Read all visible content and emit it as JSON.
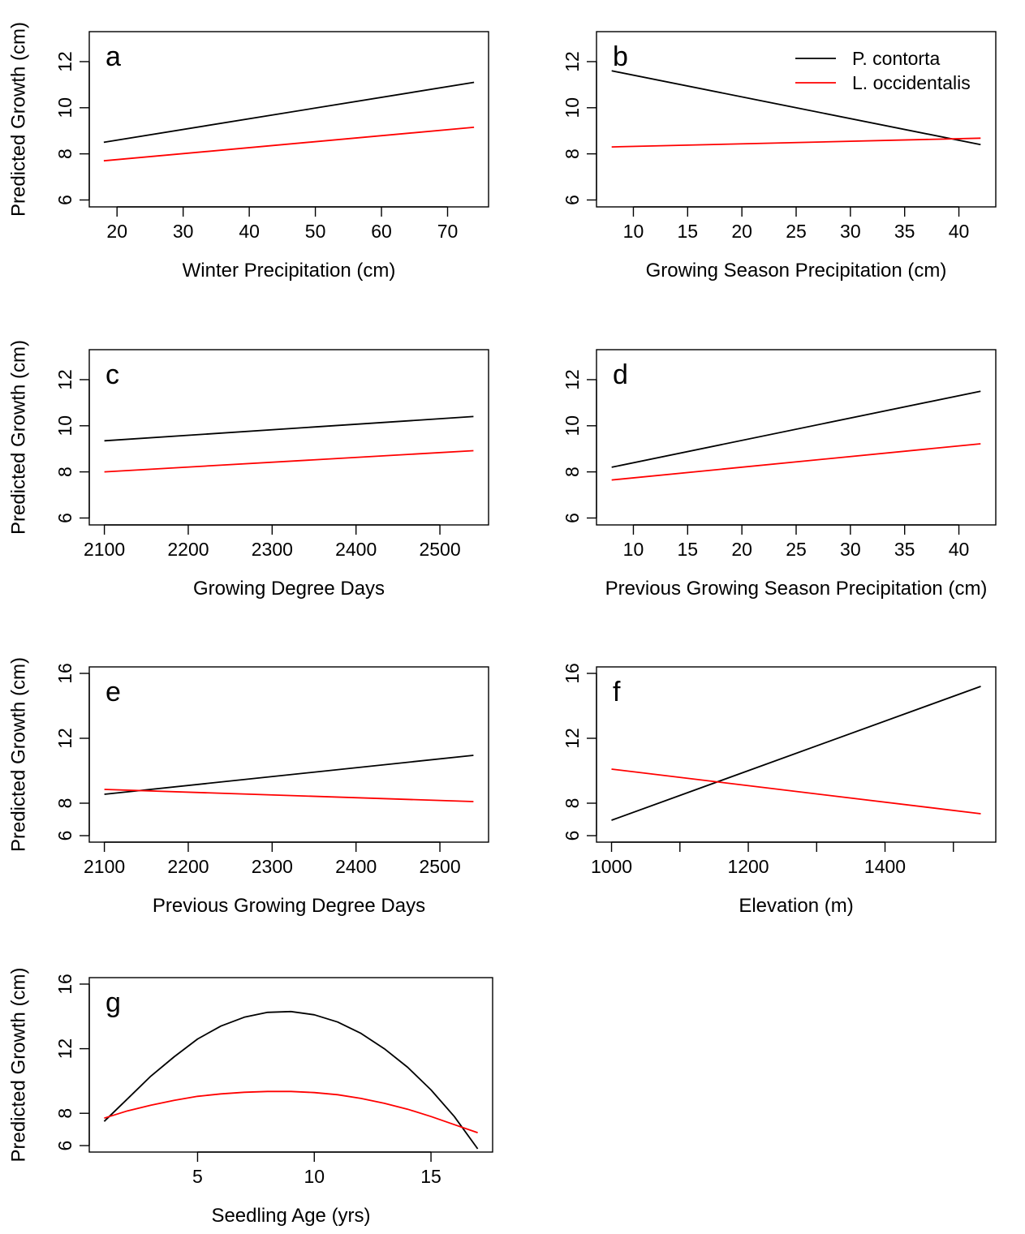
{
  "chart_data": [
    {
      "type": "line",
      "panel_label": "a",
      "xlabel": "Winter Precipitation (cm)",
      "ylabel": "Predicted Growth (cm)",
      "xlim": [
        15.8,
        76.2
      ],
      "ylim": [
        5.7,
        13.3
      ],
      "xticks": [
        20,
        30,
        40,
        50,
        60,
        70
      ],
      "yticks": [
        6,
        8,
        10,
        12
      ],
      "series": [
        {
          "name": "P. contorta",
          "color": "#000000",
          "x": [
            18,
            74
          ],
          "y": [
            8.5,
            11.1
          ]
        },
        {
          "name": "L. occidentalis",
          "color": "#ff0000",
          "x": [
            18,
            74
          ],
          "y": [
            7.7,
            9.15
          ]
        }
      ]
    },
    {
      "type": "line",
      "panel_label": "b",
      "xlabel": "Growing Season Precipitation (cm)",
      "ylabel": "",
      "xlim": [
        6.6,
        43.4
      ],
      "ylim": [
        5.7,
        13.3
      ],
      "xticks": [
        10,
        15,
        20,
        25,
        30,
        35,
        40
      ],
      "yticks": [
        6,
        8,
        10,
        12
      ],
      "legend": {
        "position": "top-right",
        "entries": [
          "P. contorta",
          "L. occidentalis"
        ]
      },
      "series": [
        {
          "name": "P. contorta",
          "color": "#000000",
          "x": [
            8,
            42
          ],
          "y": [
            11.6,
            8.4
          ]
        },
        {
          "name": "L. occidentalis",
          "color": "#ff0000",
          "x": [
            8,
            42
          ],
          "y": [
            8.3,
            8.68
          ]
        }
      ]
    },
    {
      "type": "line",
      "panel_label": "c",
      "xlabel": "Growing Degree Days",
      "ylabel": "Predicted Growth (cm)",
      "xlim": [
        2082,
        2558
      ],
      "ylim": [
        5.7,
        13.3
      ],
      "xticks": [
        2100,
        2200,
        2300,
        2400,
        2500
      ],
      "yticks": [
        6,
        8,
        10,
        12
      ],
      "series": [
        {
          "name": "P. contorta",
          "color": "#000000",
          "x": [
            2100,
            2540
          ],
          "y": [
            9.35,
            10.4
          ]
        },
        {
          "name": "L. occidentalis",
          "color": "#ff0000",
          "x": [
            2100,
            2540
          ],
          "y": [
            8.0,
            8.92
          ]
        }
      ]
    },
    {
      "type": "line",
      "panel_label": "d",
      "xlabel": "Previous Growing Season Precipitation (cm)",
      "ylabel": "",
      "xlim": [
        6.6,
        43.4
      ],
      "ylim": [
        5.7,
        13.3
      ],
      "xticks": [
        10,
        15,
        20,
        25,
        30,
        35,
        40
      ],
      "yticks": [
        6,
        8,
        10,
        12
      ],
      "series": [
        {
          "name": "P. contorta",
          "color": "#000000",
          "x": [
            8,
            42
          ],
          "y": [
            8.2,
            11.5
          ]
        },
        {
          "name": "L. occidentalis",
          "color": "#ff0000",
          "x": [
            8,
            42
          ],
          "y": [
            7.65,
            9.22
          ]
        }
      ]
    },
    {
      "type": "line",
      "panel_label": "e",
      "xlabel": "Previous Growing Degree Days",
      "ylabel": "Predicted Growth (cm)",
      "xlim": [
        2082,
        2558
      ],
      "ylim": [
        5.6,
        16.4
      ],
      "xticks": [
        2100,
        2200,
        2300,
        2400,
        2500
      ],
      "yticks": [
        6,
        8,
        12,
        16
      ],
      "series": [
        {
          "name": "P. contorta",
          "color": "#000000",
          "x": [
            2100,
            2540
          ],
          "y": [
            8.55,
            10.95
          ]
        },
        {
          "name": "L. occidentalis",
          "color": "#ff0000",
          "x": [
            2100,
            2540
          ],
          "y": [
            8.85,
            8.1
          ]
        }
      ]
    },
    {
      "type": "line",
      "panel_label": "f",
      "xlabel": "Elevation (m)",
      "ylabel": "",
      "xlim": [
        978,
        1562
      ],
      "ylim": [
        5.6,
        16.4
      ],
      "xticks": [
        1000,
        1200,
        1400
      ],
      "minor_xticks": [
        1100,
        1300,
        1500
      ],
      "yticks": [
        6,
        8,
        12,
        16
      ],
      "series": [
        {
          "name": "P. contorta",
          "color": "#000000",
          "x": [
            1000,
            1540
          ],
          "y": [
            6.95,
            15.2
          ]
        },
        {
          "name": "L. occidentalis",
          "color": "#ff0000",
          "x": [
            1000,
            1540
          ],
          "y": [
            10.1,
            7.35
          ]
        }
      ]
    },
    {
      "type": "line",
      "panel_label": "g",
      "xlabel": "Seedling Age (yrs)",
      "ylabel": "Predicted Growth (cm)",
      "xlim": [
        0.36,
        17.64
      ],
      "ylim": [
        5.6,
        16.4
      ],
      "xticks": [
        5,
        10,
        15
      ],
      "yticks": [
        6,
        8,
        12,
        16
      ],
      "series": [
        {
          "name": "P. contorta",
          "color": "#000000",
          "x": [
            1,
            2,
            3,
            4,
            5,
            6,
            7,
            8,
            9,
            10,
            11,
            12,
            13,
            14,
            15,
            16,
            17
          ],
          "y": [
            7.5,
            8.9,
            10.3,
            11.5,
            12.6,
            13.4,
            13.95,
            14.25,
            14.3,
            14.1,
            13.65,
            12.95,
            12.0,
            10.85,
            9.45,
            7.8,
            5.8
          ]
        },
        {
          "name": "L. occidentalis",
          "color": "#ff0000",
          "x": [
            1,
            2,
            3,
            4,
            5,
            6,
            7,
            8,
            9,
            10,
            11,
            12,
            13,
            14,
            15,
            16,
            17
          ],
          "y": [
            7.7,
            8.15,
            8.5,
            8.8,
            9.05,
            9.2,
            9.3,
            9.35,
            9.35,
            9.28,
            9.15,
            8.92,
            8.62,
            8.25,
            7.8,
            7.3,
            6.8
          ]
        }
      ]
    }
  ]
}
